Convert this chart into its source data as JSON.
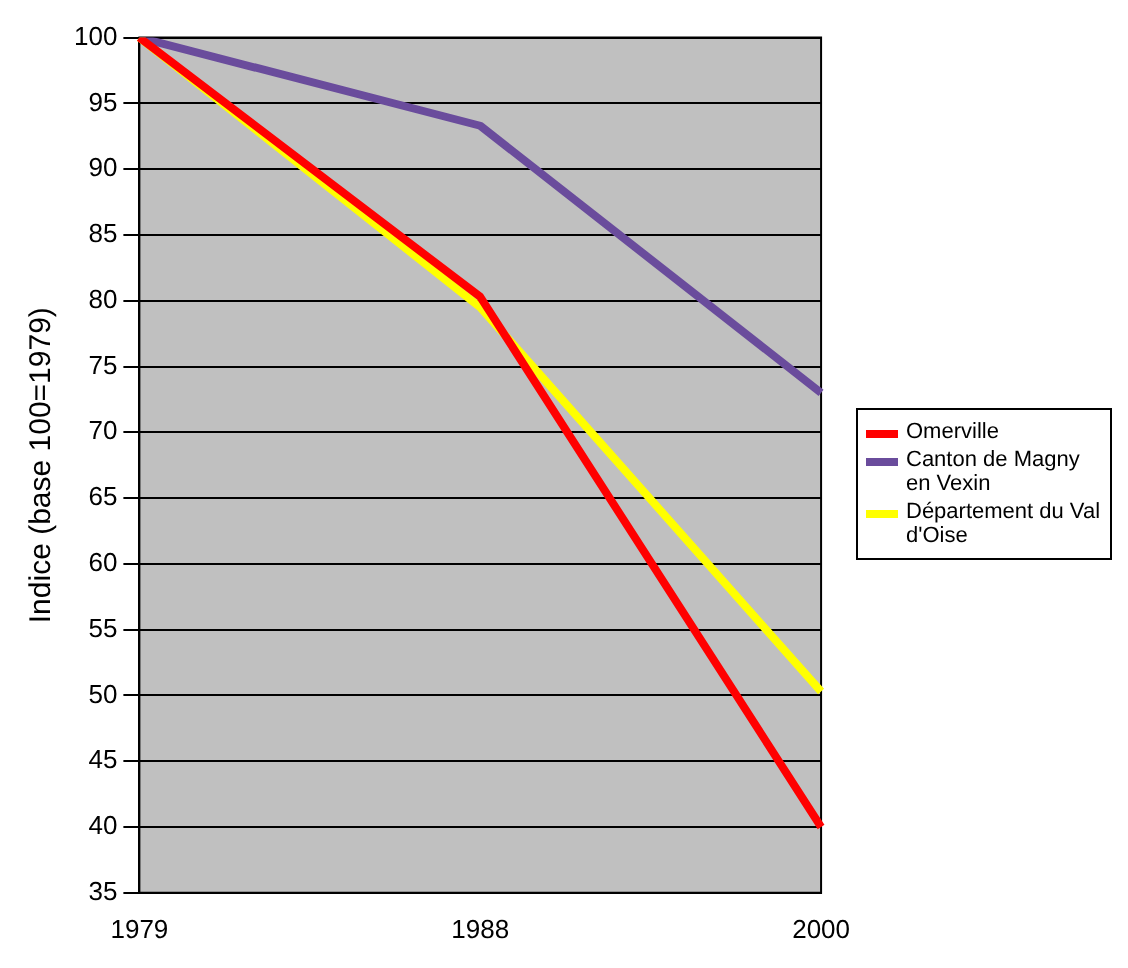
{
  "chart_data": {
    "type": "line",
    "ylabel": "Indice (base 100=1979)",
    "categories": [
      "1979",
      "1988",
      "2000"
    ],
    "series": [
      {
        "name": "Omerville",
        "color": "#ff0000",
        "values": [
          100,
          80.3,
          40
        ]
      },
      {
        "name": "Canton de Magny en Vexin",
        "color": "#6a4c9c",
        "values": [
          100,
          93.3,
          73
        ]
      },
      {
        "name": "Département du Val d'Oise",
        "color": "#ffff00",
        "values": [
          100,
          79.5,
          50.3
        ]
      }
    ],
    "ylim": [
      35,
      100
    ],
    "yticks": [
      35,
      40,
      45,
      50,
      55,
      60,
      65,
      70,
      75,
      80,
      85,
      90,
      95,
      100
    ],
    "grid": "y",
    "legend": "right",
    "marker": "none",
    "line_style": "solid"
  }
}
